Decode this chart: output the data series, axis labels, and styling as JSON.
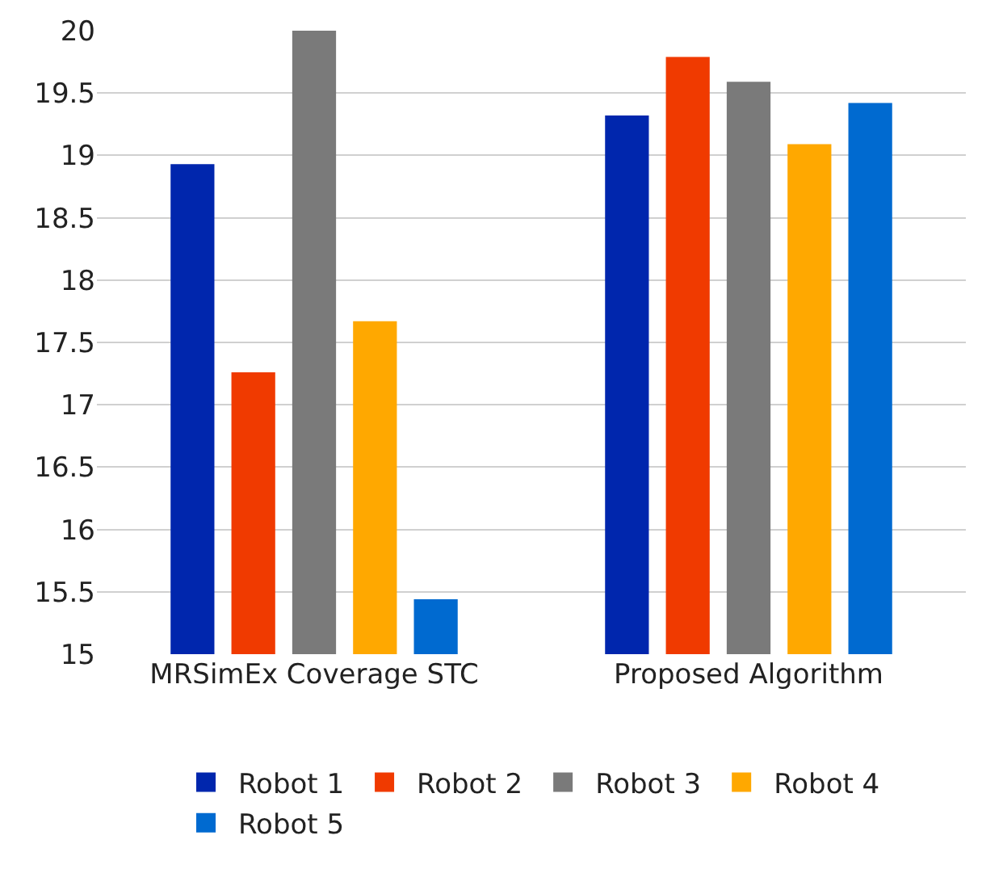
{
  "chart_data": {
    "type": "bar",
    "categories": [
      "MRSimEx Coverage STC",
      "Proposed Algorithm"
    ],
    "series": [
      {
        "name": "Robot 1",
        "color": "#0026ad",
        "values": [
          18.93,
          19.32
        ]
      },
      {
        "name": "Robot 2",
        "color": "#f03a00",
        "values": [
          17.26,
          19.79
        ]
      },
      {
        "name": "Robot 3",
        "color": "#7a7a7a",
        "values": [
          20.0,
          19.59
        ]
      },
      {
        "name": "Robot 4",
        "color": "#ffa800",
        "values": [
          17.67,
          19.09
        ]
      },
      {
        "name": "Robot 5",
        "color": "#006ad0",
        "values": [
          15.44,
          19.42
        ]
      }
    ],
    "ylim": [
      15,
      20
    ],
    "yticks": [
      15,
      15.5,
      16,
      16.5,
      17,
      17.5,
      18,
      18.5,
      19,
      19.5,
      20
    ],
    "grid": "y",
    "legend": "bottom"
  }
}
